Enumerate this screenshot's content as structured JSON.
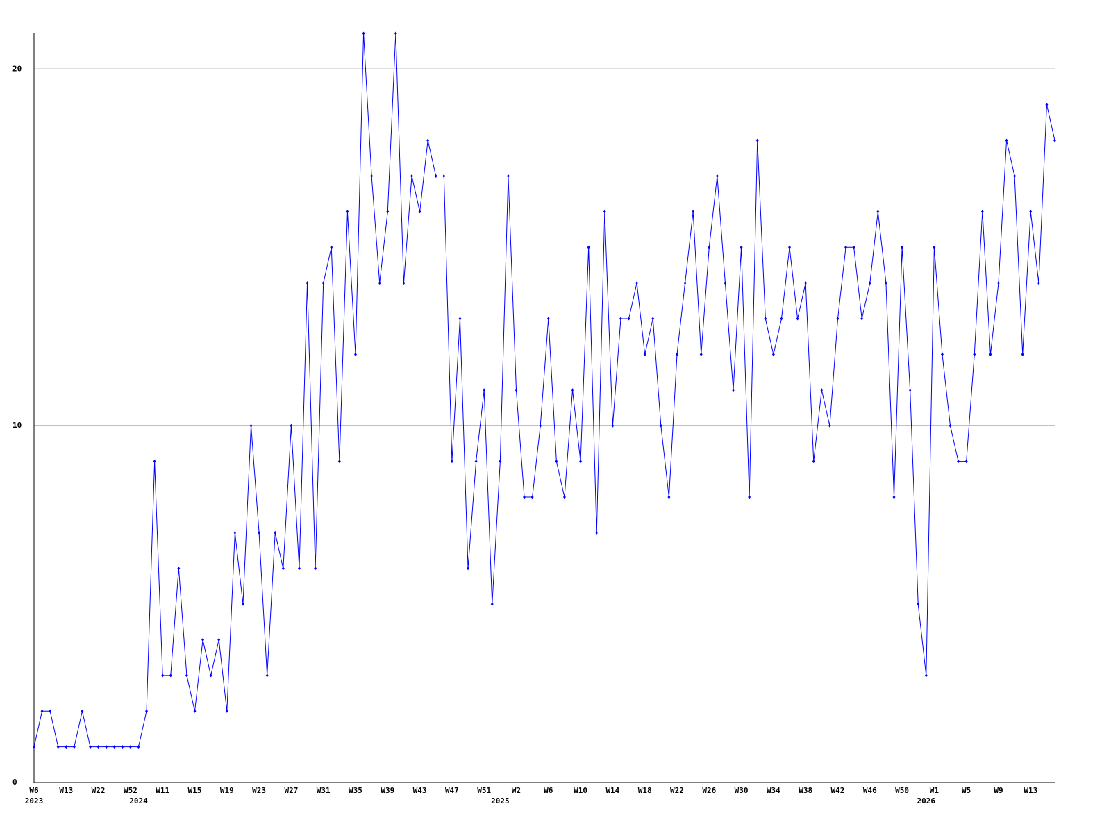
{
  "chart_data": {
    "type": "line",
    "categories": [
      "W6",
      null,
      null,
      null,
      "W13",
      null,
      null,
      null,
      "W22",
      null,
      null,
      null,
      "W52",
      null,
      null,
      null,
      "W11",
      null,
      null,
      null,
      "W15",
      null,
      null,
      null,
      "W19",
      null,
      null,
      null,
      "W23",
      null,
      null,
      null,
      "W27",
      null,
      null,
      null,
      "W31",
      null,
      null,
      null,
      "W35",
      null,
      null,
      null,
      "W39",
      null,
      null,
      null,
      "W43",
      null,
      null,
      null,
      "W47",
      null,
      null,
      null,
      "W51",
      null,
      null,
      null,
      "W2",
      null,
      null,
      null,
      "W6",
      null,
      null,
      null,
      "W10",
      null,
      null,
      null,
      "W14",
      null,
      null,
      null,
      "W18",
      null,
      null,
      null,
      "W22",
      null,
      null,
      null,
      "W26",
      null,
      null,
      null,
      "W30",
      null,
      null,
      null,
      "W34",
      null,
      null,
      null,
      "W38",
      null,
      null,
      null,
      "W42",
      null,
      null,
      null,
      "W46",
      null,
      null,
      null,
      "W50",
      null,
      null,
      null,
      "W1",
      null,
      null,
      null,
      "W5",
      null,
      null,
      null,
      "W9",
      null,
      null,
      null,
      "W13",
      null,
      null,
      null
    ],
    "years": [
      "2023",
      null,
      null,
      null,
      null,
      null,
      null,
      null,
      null,
      null,
      null,
      null,
      null,
      "2024",
      null,
      null,
      null,
      null,
      null,
      null,
      null,
      null,
      null,
      null,
      null,
      null,
      null,
      null,
      null,
      null,
      null,
      null,
      null,
      null,
      null,
      null,
      null,
      null,
      null,
      null,
      null,
      null,
      null,
      null,
      null,
      null,
      null,
      null,
      null,
      null,
      null,
      null,
      null,
      null,
      null,
      null,
      null,
      null,
      "2025",
      null,
      null,
      null,
      null,
      null,
      null,
      null,
      null,
      null,
      null,
      null,
      null,
      null,
      null,
      null,
      null,
      null,
      null,
      null,
      null,
      null,
      null,
      null,
      null,
      null,
      null,
      null,
      null,
      null,
      null,
      null,
      null,
      null,
      null,
      null,
      null,
      null,
      null,
      null,
      null,
      null,
      null,
      null,
      null,
      null,
      null,
      null,
      null,
      null,
      null,
      null,
      null,
      "2026",
      null,
      null,
      null,
      null,
      null,
      null,
      null,
      null,
      null,
      null,
      null,
      null,
      null,
      null,
      null,
      null
    ],
    "series": [
      {
        "color": "#0000ff",
        "values": [
          1,
          2,
          2,
          1,
          1,
          1,
          2,
          1,
          1,
          1,
          1,
          1,
          1,
          1,
          2,
          9,
          3,
          3,
          6,
          3,
          2,
          4,
          3,
          4,
          2,
          7,
          5,
          10,
          7,
          3,
          7,
          6,
          10,
          6,
          14,
          6,
          14,
          15,
          9,
          16,
          12,
          21,
          17,
          14,
          16,
          21,
          14,
          17,
          16,
          18,
          17,
          17,
          9,
          13,
          6,
          9,
          11,
          5,
          9,
          17,
          11,
          8,
          8,
          10,
          13,
          9,
          8,
          11,
          9,
          15,
          7,
          16,
          10,
          13,
          13,
          14,
          12,
          13,
          10,
          8,
          12,
          14,
          16,
          12,
          15,
          17,
          14,
          11,
          15,
          8,
          18,
          13,
          12,
          13,
          15,
          13,
          14,
          9,
          11,
          10,
          13,
          15,
          15,
          13,
          14,
          16,
          14,
          8,
          15,
          11,
          5,
          3,
          15,
          12,
          10,
          9,
          9,
          12,
          16,
          12,
          14,
          18,
          17,
          12,
          16,
          14,
          19,
          18
        ]
      }
    ],
    "ylim": [
      0,
      21
    ],
    "yticks": [
      0,
      10,
      20
    ],
    "grid": true
  }
}
